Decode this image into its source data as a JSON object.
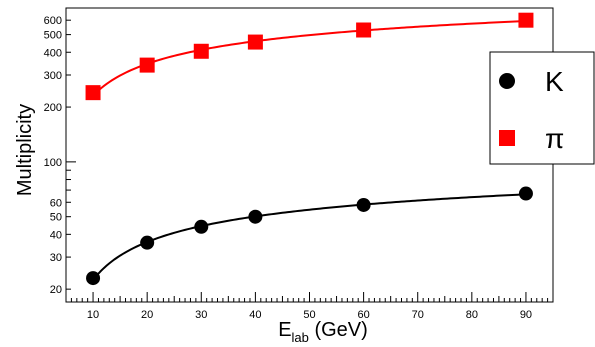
{
  "chart_data": {
    "type": "scatter",
    "xlabel": "E",
    "xlabel_sub": "lab",
    "xlabel_suffix": " (GeV)",
    "ylabel": "Multiplicity",
    "xlim": [
      5,
      95
    ],
    "ylim": [
      17,
      700
    ],
    "yscale": "log",
    "x_ticks": [
      10,
      20,
      30,
      40,
      50,
      60,
      70,
      80,
      90
    ],
    "y_tick_labels": [
      20,
      30,
      40,
      50,
      60,
      100,
      200,
      300,
      400,
      500,
      600
    ],
    "legend_position": "right",
    "series": [
      {
        "name": "K",
        "marker": "circle",
        "color": "#000000",
        "x": [
          10,
          20,
          30,
          40,
          60,
          90
        ],
        "y": [
          23,
          36,
          44,
          50,
          58,
          67
        ]
      },
      {
        "name": "π",
        "marker": "square",
        "color": "#ff0000",
        "x": [
          10,
          20,
          30,
          40,
          60,
          90
        ],
        "y": [
          240,
          340,
          405,
          455,
          530,
          600
        ]
      }
    ]
  }
}
